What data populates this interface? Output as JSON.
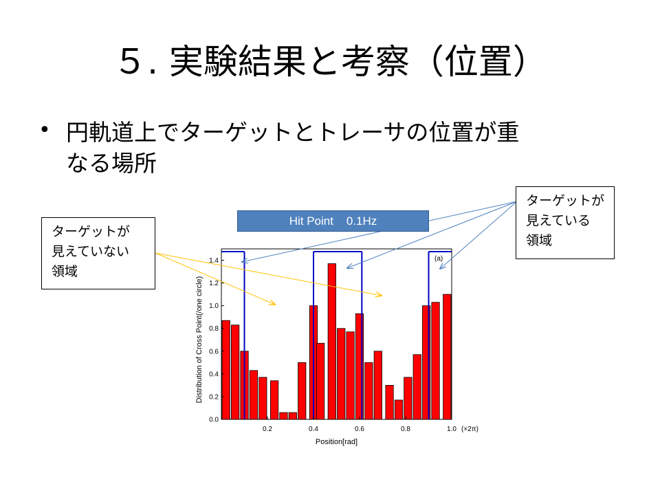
{
  "slide": {
    "title": "５. 実験結果と考察（位置）",
    "bullet_line1": "円軌道上でターゲットとトレーサの位置が重",
    "bullet_line2": "なる場所"
  },
  "callouts": {
    "not_visible": [
      "ターゲットが",
      "見えていない",
      "領域"
    ],
    "visible": [
      "ターゲットが",
      "見えている",
      "領域"
    ]
  },
  "hit_label": "Hit Point    0.1Hz",
  "colors": {
    "bars": "#ff0000",
    "regions": "#0000c0",
    "arrow_blue": "#4f81bd",
    "arrow_yellow": "#ffc000",
    "hit_box": "#4f81bd"
  },
  "chart_data": {
    "type": "bar",
    "panel_label": "(a)",
    "xlabel": "Position[rad]",
    "ylabel": "Distribution of Cross Point(/one circle)",
    "x_unit_label": "(×2π)",
    "xlim": [
      0.0,
      1.0
    ],
    "ylim": [
      0.0,
      1.5
    ],
    "x_ticks": [
      0.2,
      0.4,
      0.6,
      0.8,
      1.0
    ],
    "x_tick_labels": [
      "0.2",
      "0.4",
      "0.6",
      "0.8",
      "1.0"
    ],
    "y_ticks": [
      0.0,
      0.2,
      0.4,
      0.6,
      0.8,
      1.0,
      1.2,
      1.4
    ],
    "y_tick_labels": [
      "0.0",
      "0.2",
      "0.4",
      "0.6",
      "0.8",
      "1.0",
      "1.2",
      "1.4"
    ],
    "bin_width": 0.04,
    "x": [
      0.02,
      0.06,
      0.1,
      0.14,
      0.18,
      0.23,
      0.27,
      0.31,
      0.35,
      0.4,
      0.43,
      0.48,
      0.52,
      0.56,
      0.6,
      0.64,
      0.68,
      0.73,
      0.77,
      0.81,
      0.85,
      0.89,
      0.93,
      0.98
    ],
    "values": [
      0.87,
      0.83,
      0.6,
      0.43,
      0.37,
      0.34,
      0.06,
      0.06,
      0.5,
      1.0,
      0.67,
      1.37,
      0.8,
      0.77,
      0.93,
      0.5,
      0.6,
      0.3,
      0.17,
      0.37,
      0.57,
      1.0,
      1.03,
      1.1
    ],
    "visible_regions": [
      [
        0.0,
        0.1
      ],
      [
        0.4,
        0.61
      ],
      [
        0.9,
        1.0
      ]
    ]
  }
}
